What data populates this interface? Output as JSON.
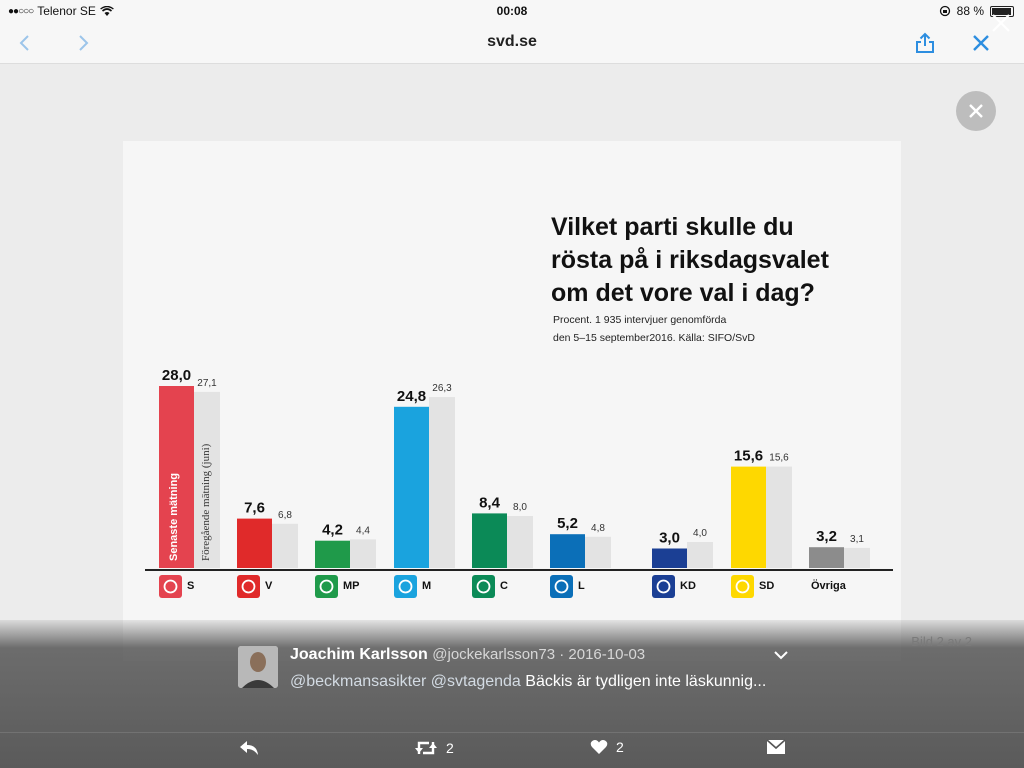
{
  "status_bar": {
    "signal": "●●○○○",
    "carrier": "Telenor SE",
    "time": "00:08",
    "battery_percent": "88 %"
  },
  "nav": {
    "url": "svd.se"
  },
  "colors": {
    "ios_blue": "#2d8ee0",
    "bar_prev": "#e3e3e3"
  },
  "chart_data": {
    "type": "bar",
    "title_lines": [
      "Vilket parti skulle du",
      "rösta på i riksdagsvalet",
      "om det vore val i dag?"
    ],
    "subtitle_lines": [
      "Procent. 1 935 intervjuer genomförda",
      "den 5–15 september2016. Källa: SIFO/SvD"
    ],
    "series": [
      {
        "name": "Senaste mätning"
      },
      {
        "name": "Föregående mätning (juni)"
      }
    ],
    "categories": [
      "S",
      "V",
      "MP",
      "M",
      "C",
      "L",
      "KD",
      "SD",
      "Övriga"
    ],
    "latest": [
      28.0,
      7.6,
      4.2,
      24.8,
      8.4,
      5.2,
      3.0,
      15.6,
      3.2
    ],
    "previous": [
      27.1,
      6.8,
      4.4,
      26.3,
      8.0,
      4.8,
      4.0,
      15.6,
      3.1
    ],
    "latest_labels": [
      "28,0",
      "7,6",
      "4,2",
      "24,8",
      "8,4",
      "5,2",
      "3,0",
      "15,6",
      "3,2"
    ],
    "previous_labels": [
      "27,1",
      "6,8",
      "4,4",
      "26,3",
      "8,0",
      "4,8",
      "4,0",
      "15,6",
      "3,1"
    ],
    "party_colors": [
      "#e4434f",
      "#e02a2a",
      "#1f9a4a",
      "#1aa3de",
      "#0b8a57",
      "#0b6fb8",
      "#1b3f94",
      "#fed800",
      "#8c8c8c"
    ],
    "ylim": [
      0,
      30
    ]
  },
  "tweet": {
    "image_counter": "Bild 2 av 2",
    "author_name": "Joachim Karlsson",
    "author_meta": "@jockekarlsson73 · 2016-10-03",
    "mention1": "@beckmansasikter",
    "mention2": "@svtagenda",
    "text": "Bäckis är tydligen inte läskunnig...",
    "retweet_count": "2",
    "like_count": "2"
  }
}
